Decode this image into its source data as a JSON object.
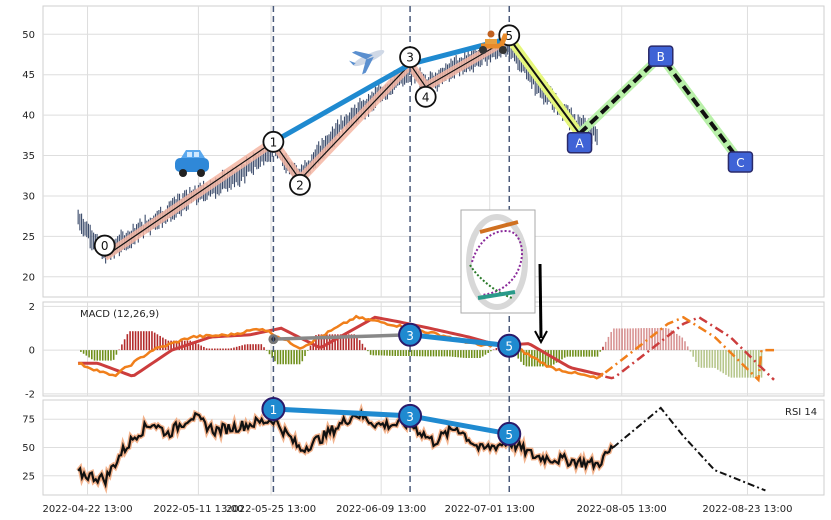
{
  "chart_data": {
    "type": "line",
    "x_ticks": [
      "2022-04-22 13:00",
      "2022-05-11 13:00",
      "2022-05-25 13:00",
      "2022-06-09 13:00",
      "2022-07-01 13:00",
      "2022-08-05 13:00",
      "2022-08-23 13:00"
    ],
    "panels": [
      {
        "name": "price",
        "ylim": [
          17.5,
          53.5
        ],
        "yticks": [
          20,
          25,
          30,
          35,
          40,
          45,
          50
        ],
        "elliott_waves": [
          {
            "label": "0",
            "x": 0.079,
            "y": 22.5
          },
          {
            "label": "1",
            "x": 0.295,
            "y": 36.7
          },
          {
            "label": "2",
            "x": 0.329,
            "y": 32.0
          },
          {
            "label": "3",
            "x": 0.47,
            "y": 46.3
          },
          {
            "label": "4",
            "x": 0.49,
            "y": 43.5
          },
          {
            "label": "5",
            "x": 0.597,
            "y": 49.5
          }
        ],
        "corrective_waves": [
          {
            "label": "A",
            "x": 0.687,
            "y": 37.7
          },
          {
            "label": "B",
            "x": 0.791,
            "y": 47.3
          },
          {
            "label": "C",
            "x": 0.893,
            "y": 34.2
          }
        ]
      },
      {
        "name": "macd",
        "label": "MACD (12,26,9)",
        "ylim": [
          -2.1,
          2.2
        ],
        "yticks": [
          -2,
          0,
          2
        ],
        "markers": [
          "3",
          "5"
        ]
      },
      {
        "name": "rsi",
        "label": "RSI 14",
        "ylim": [
          8,
          92
        ],
        "yticks": [
          25,
          50,
          75
        ],
        "markers": [
          "1",
          "3",
          "5"
        ]
      }
    ],
    "colors": {
      "impulse_fill": "#f4b6a3",
      "impulse_line": "#111111",
      "trend_line": "#1f8ad0",
      "correction_fill_a": "#e6f77c",
      "correction_fill_bc": "#b9f0a9",
      "correction_line": "#111111",
      "macd_line": "#f07f1b",
      "signal_line": "#cc3d3d",
      "hist_pos": "#b32b2b",
      "hist_neg": "#6f8f1a",
      "rsi_line": "#111111",
      "rsi_glow": "#f0a070",
      "candles": "#3a4a6a",
      "badge_fill": "#3f63d6",
      "vline": "#4a5a7a"
    },
    "icons": [
      "car-icon",
      "airplane-icon",
      "scooter-icon"
    ]
  }
}
